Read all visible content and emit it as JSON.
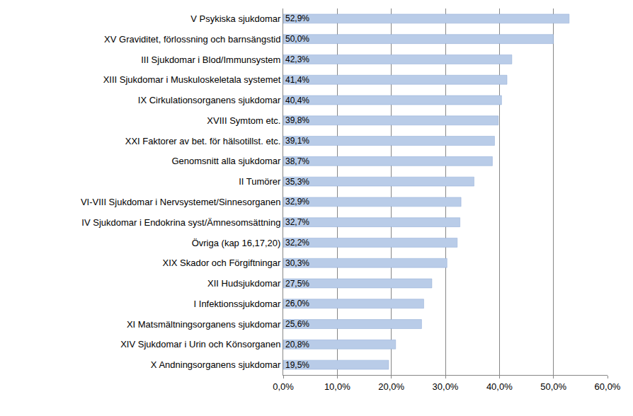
{
  "chart_data": {
    "type": "bar",
    "orientation": "horizontal",
    "categories": [
      "V Psykiska sjukdomar",
      "XV Graviditet, förlossning och barnsängstid",
      "III Sjukdomar i Blod/Immunsystem",
      "XIII Sjukdomar i Muskuloskeletala systemet",
      "IX Cirkulationsorganens sjukdomar",
      "XVIII Symtom etc.",
      "XXI Faktorer av bet. för hälsotillst. etc.",
      "Genomsnitt alla sjukdomar",
      "II Tumörer",
      "VI-VIII Sjukdomar i Nervsystemet/Sinnesorganen",
      "IV Sjukdomar i Endokrina syst/Ämnesomsättning",
      "Övriga (kap 16,17,20)",
      "XIX Skador och Förgiftningar",
      "XII Hudsjukdomar",
      "I Infektionssjukdomar",
      "XI Matsmältningsorganens sjukdomar",
      "XIV Sjukdomar i Urin och Könsorganen",
      "X Andningsorganens sjukdomar"
    ],
    "values": [
      52.9,
      50.0,
      42.3,
      41.4,
      40.4,
      39.8,
      39.1,
      38.7,
      35.3,
      32.9,
      32.7,
      32.2,
      30.3,
      27.5,
      26.0,
      25.6,
      20.8,
      19.5
    ],
    "value_labels": [
      "52,9%",
      "50,0%",
      "42,3%",
      "41,4%",
      "40,4%",
      "39,8%",
      "39,1%",
      "38,7%",
      "35,3%",
      "32,9%",
      "32,7%",
      "32,2%",
      "30,3%",
      "27,5%",
      "26,0%",
      "25,6%",
      "20,8%",
      "19,5%"
    ],
    "data_labels": true,
    "color": "#b9cce8",
    "xlim": [
      0,
      60
    ],
    "xticks": [
      {
        "value": 0,
        "label": "0,0%"
      },
      {
        "value": 10,
        "label": "10,0%"
      },
      {
        "value": 20,
        "label": "20,0%"
      },
      {
        "value": 30,
        "label": "30,0%"
      },
      {
        "value": 40,
        "label": "40,0%"
      },
      {
        "value": 50,
        "label": "50,0%"
      },
      {
        "value": 60,
        "label": "60,0%"
      }
    ],
    "grid": true
  }
}
